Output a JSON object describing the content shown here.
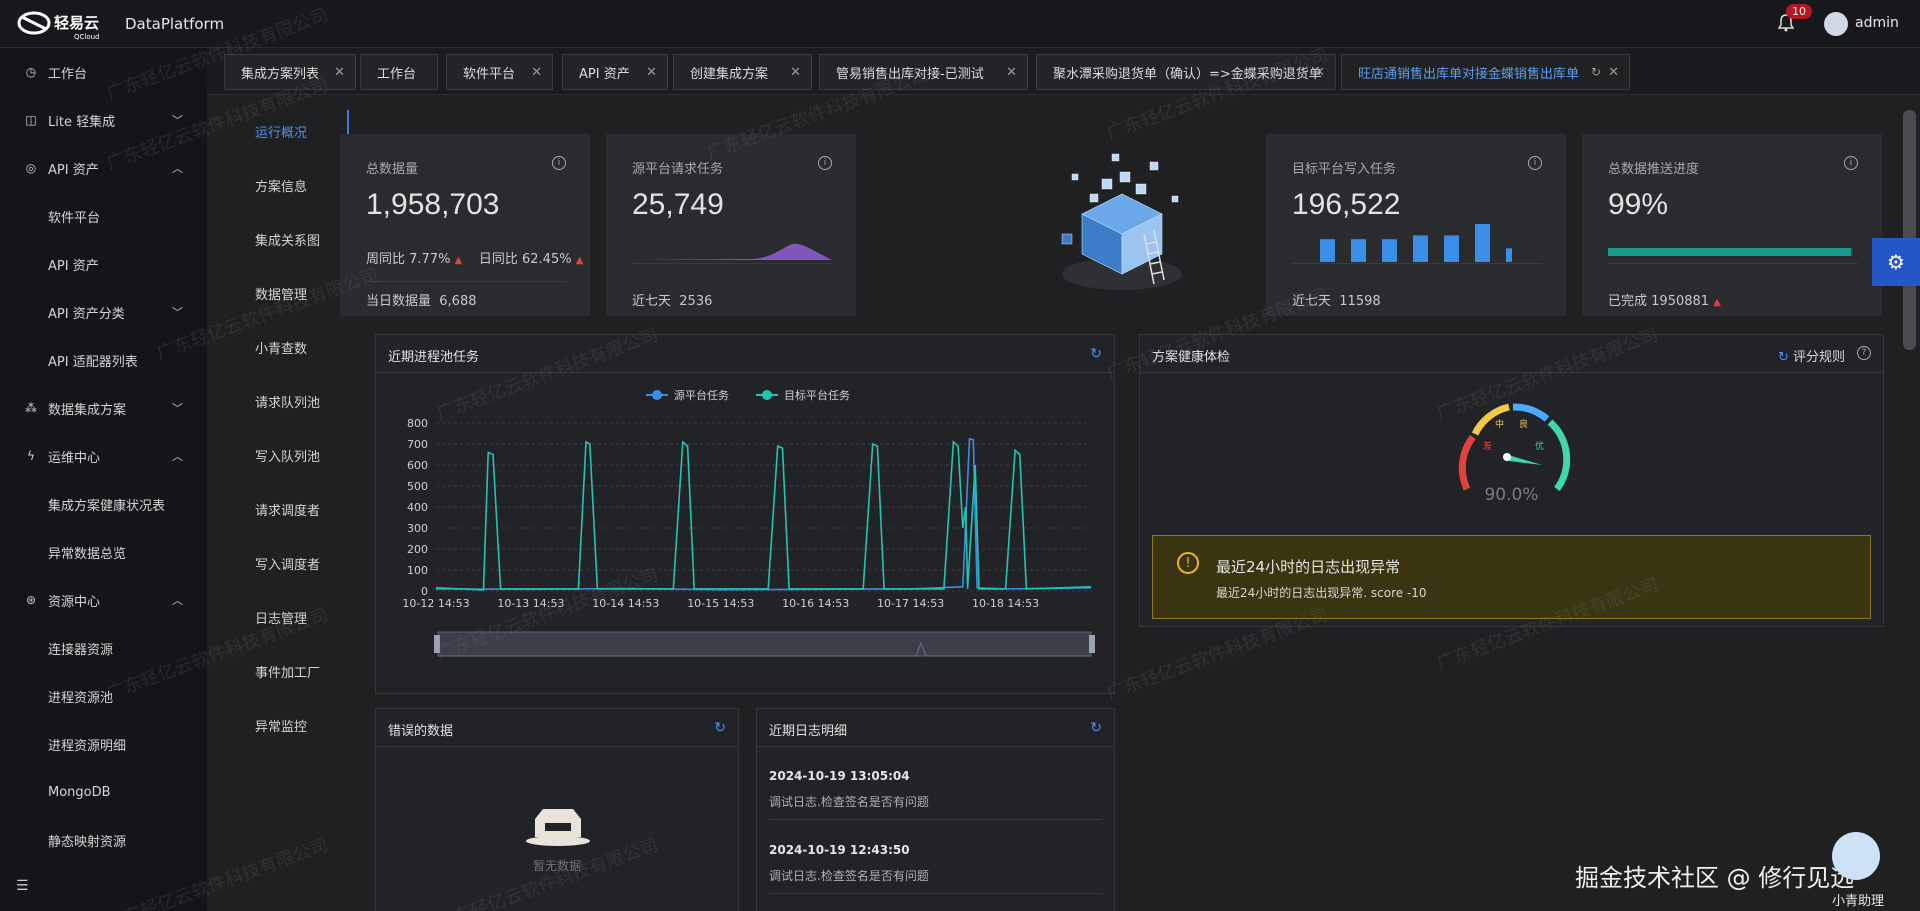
{
  "header": {
    "brand": "轻易云",
    "brand_sub": "QCloud",
    "app_title": "DataPlatform",
    "notification_count": "10",
    "user": "admin"
  },
  "sidebar": {
    "items": [
      {
        "label": "工作台",
        "icon": "clock-icon",
        "chevron": ""
      },
      {
        "label": "Lite 轻集成",
        "icon": "lite-icon",
        "chevron": "down"
      },
      {
        "label": "API 资产",
        "icon": "compass-icon",
        "chevron": "up"
      },
      {
        "label": "软件平台",
        "icon": "",
        "chevron": ""
      },
      {
        "label": "API 资产",
        "icon": "",
        "chevron": ""
      },
      {
        "label": "API 资产分类",
        "icon": "",
        "chevron": "down"
      },
      {
        "label": "API 适配器列表",
        "icon": "",
        "chevron": ""
      },
      {
        "label": "数据集成方案",
        "icon": "nodes-icon",
        "chevron": "down"
      },
      {
        "label": "运维中心",
        "icon": "bolt-icon",
        "chevron": "up"
      },
      {
        "label": "集成方案健康状况表",
        "icon": "",
        "chevron": ""
      },
      {
        "label": "异常数据总览",
        "icon": "",
        "chevron": ""
      },
      {
        "label": "资源中心",
        "icon": "cluster-icon",
        "chevron": "up"
      },
      {
        "label": "连接器资源",
        "icon": "",
        "chevron": ""
      },
      {
        "label": "进程资源池",
        "icon": "",
        "chevron": ""
      },
      {
        "label": "进程资源明细",
        "icon": "",
        "chevron": ""
      },
      {
        "label": "MongoDB",
        "icon": "",
        "chevron": ""
      },
      {
        "label": "静态映射资源",
        "icon": "",
        "chevron": ""
      }
    ]
  },
  "tabs": [
    {
      "label": "集成方案列表"
    },
    {
      "label": "工作台"
    },
    {
      "label": "软件平台"
    },
    {
      "label": "API 资产"
    },
    {
      "label": "创建集成方案"
    },
    {
      "label": "管易销售出库对接-已测试"
    },
    {
      "label": "聚水潭采购退货单（确认）=>金蝶采购退货单"
    },
    {
      "label": "旺店通销售出库单对接金蝶销售出库单"
    }
  ],
  "subnav": [
    "运行概况",
    "方案信息",
    "集成关系图",
    "数据管理",
    "小青查数",
    "请求队列池",
    "写入队列池",
    "请求调度者",
    "写入调度者",
    "日志管理",
    "事件加工厂",
    "异常监控"
  ],
  "stats": {
    "total": {
      "title": "总数据量",
      "value": "1,958,703",
      "wow_label": "周同比",
      "wow": "7.77%",
      "dod_label": "日同比",
      "dod": "62.45%",
      "today_label": "当日数据量",
      "today": "6,688"
    },
    "source": {
      "title": "源平台请求任务",
      "value": "25,749",
      "week_label": "近七天",
      "week": "2536"
    },
    "target": {
      "title": "目标平台写入任务",
      "value": "196,522",
      "week_label": "近七天",
      "week": "11598",
      "bars": [
        3,
        3,
        3,
        3.5,
        3.5,
        5,
        1.8
      ]
    },
    "progress": {
      "title": "总数据推送进度",
      "value": "99%",
      "done_label": "已完成",
      "done": "1950881",
      "fill": 0.99
    }
  },
  "pool": {
    "title": "近期进程池任务",
    "legend": [
      "源平台任务",
      "目标平台任务"
    ]
  },
  "health": {
    "title": "方案健康体检",
    "rules": "评分规则",
    "score": "90.0%",
    "gauge_labels": [
      "差",
      "中",
      "良",
      "优"
    ],
    "alert_title": "最近24小时的日志出现异常",
    "alert_body": "最近24小时的日志出现异常. score -10"
  },
  "errors": {
    "title": "错误的数据",
    "empty": "暂无数据"
  },
  "logs": {
    "title": "近期日志明细",
    "items": [
      {
        "time": "2024-10-19 13:05:04",
        "msg": "调试日志.检查签名是否有问题"
      },
      {
        "time": "2024-10-19 12:43:50",
        "msg": "调试日志.检查签名是否有问题"
      }
    ]
  },
  "watermark": "广东轻亿云软件科技有限公司",
  "footer": {
    "site": "掘金技术社区 @ 修行见远",
    "helper": "小青助理"
  },
  "colors": {
    "accent": "#4a8ff0",
    "teal": "#1fc6b4",
    "blue": "#3a8ee6",
    "purple": "#8a5cc9",
    "alert_bg": "#3a3510",
    "alert_border": "#8c7a1c"
  },
  "chart_data": {
    "type": "line",
    "title": "近期进程池任务",
    "x_ticks": [
      "10-12 14:53",
      "10-13 14:53",
      "10-14 14:53",
      "10-15 14:53",
      "10-16 14:53",
      "10-17 14:53",
      "10-18 14:53"
    ],
    "ylim": [
      0,
      800
    ],
    "y_ticks": [
      0,
      100,
      200,
      300,
      400,
      500,
      600,
      700,
      800
    ],
    "series": [
      {
        "name": "源平台任务",
        "color": "#3a8ee6",
        "points": [
          [
            0,
            10
          ],
          [
            1,
            8
          ],
          [
            2,
            12
          ],
          [
            3,
            6
          ],
          [
            4,
            8
          ],
          [
            5,
            10
          ],
          [
            5.55,
            20
          ],
          [
            5.62,
            725
          ],
          [
            5.66,
            720
          ],
          [
            5.7,
            15
          ],
          [
            6,
            10
          ],
          [
            6.9,
            15
          ]
        ]
      },
      {
        "name": "目标平台任务",
        "color": "#1fc6b4",
        "points": [
          [
            0,
            15
          ],
          [
            0.5,
            5
          ],
          [
            0.55,
            660
          ],
          [
            0.6,
            650
          ],
          [
            0.68,
            10
          ],
          [
            1.3,
            10
          ],
          [
            1.5,
            10
          ],
          [
            1.58,
            710
          ],
          [
            1.62,
            700
          ],
          [
            1.7,
            10
          ],
          [
            2.4,
            10
          ],
          [
            2.5,
            10
          ],
          [
            2.6,
            710
          ],
          [
            2.65,
            690
          ],
          [
            2.72,
            10
          ],
          [
            3.4,
            10
          ],
          [
            3.5,
            10
          ],
          [
            3.6,
            690
          ],
          [
            3.65,
            680
          ],
          [
            3.72,
            10
          ],
          [
            4.4,
            10
          ],
          [
            4.5,
            10
          ],
          [
            4.6,
            700
          ],
          [
            4.65,
            690
          ],
          [
            4.72,
            10
          ],
          [
            5.2,
            10
          ],
          [
            5.35,
            10
          ],
          [
            5.45,
            710
          ],
          [
            5.5,
            690
          ],
          [
            5.55,
            300
          ],
          [
            5.58,
            400
          ],
          [
            5.6,
            10
          ],
          [
            5.68,
            600
          ],
          [
            5.72,
            10
          ],
          [
            5.8,
            10
          ],
          [
            6.0,
            10
          ],
          [
            6.1,
            670
          ],
          [
            6.15,
            650
          ],
          [
            6.22,
            10
          ],
          [
            6.9,
            20
          ]
        ]
      }
    ]
  }
}
